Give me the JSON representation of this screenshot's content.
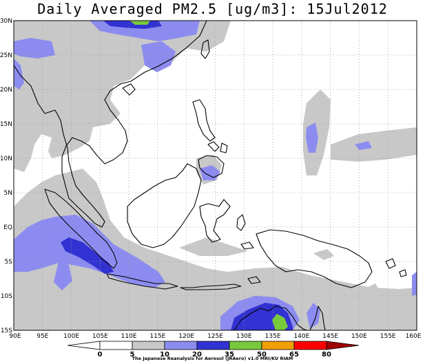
{
  "title": "Daily Averaged PM2.5 [ug/m3]: 15Jul2012",
  "lat_labels": [
    "30N",
    "25N",
    "20N",
    "15N",
    "10N",
    "5N",
    "EQ",
    "5S",
    "10S",
    "15S"
  ],
  "lon_labels": [
    "90E",
    "95E",
    "100E",
    "105E",
    "110E",
    "115E",
    "120E",
    "125E",
    "130E",
    "135E",
    "140E",
    "145E",
    "150E",
    "155E",
    "160E"
  ],
  "colorbar": {
    "tick_labels": [
      "0",
      "5",
      "10",
      "20",
      "35",
      "50",
      "65",
      "80"
    ],
    "colors": [
      "#ffffff",
      "#ffffff",
      "#c8c8c8",
      "#8c8cf0",
      "#3232d2",
      "#78c83c",
      "#f0a000",
      "#ff0000",
      "#a00000"
    ]
  },
  "credit": "The Japanese Reanalysis for Aerosol (JRAero) v1.0 MRI/KU RIAM"
}
